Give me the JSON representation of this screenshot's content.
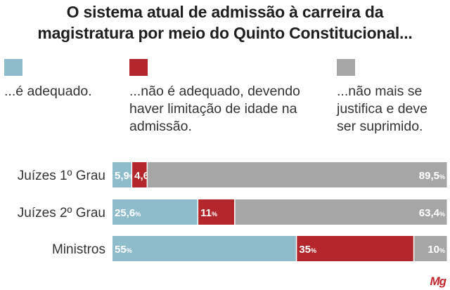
{
  "title_line1": "O sistema atual de admissão à carreira da",
  "title_line2": "magistratura por meio do Quinto Constitucional...",
  "brand": "Mg",
  "colors": {
    "adequado": "#8fbccb",
    "nao_adequado": "#b3272c",
    "suprimido": "#a6a6a6"
  },
  "chart_data": {
    "type": "bar",
    "orientation": "horizontal",
    "stacked": true,
    "percent_scale": true,
    "categories": [
      "Juízes 1º Grau",
      "Juízes 2º Grau",
      "Ministros"
    ],
    "series": [
      {
        "name": "...é adequado.",
        "values": [
          5.9,
          25.6,
          55
        ],
        "labels": [
          "5,9",
          "25,6",
          "55"
        ],
        "color": "#8fbccb"
      },
      {
        "name": "...não é adequado, devendo haver limitação de idade na admissão.",
        "values": [
          4.6,
          11,
          35
        ],
        "labels": [
          "4,6",
          "11",
          "35"
        ],
        "color": "#b3272c"
      },
      {
        "name": "...não mais se justifica e deve ser suprimido.",
        "values": [
          89.5,
          63.4,
          10
        ],
        "labels": [
          "89,5",
          "63,4",
          "10"
        ],
        "color": "#a6a6a6"
      }
    ],
    "value_suffix": "%",
    "legend_position": "top",
    "grid": false
  }
}
